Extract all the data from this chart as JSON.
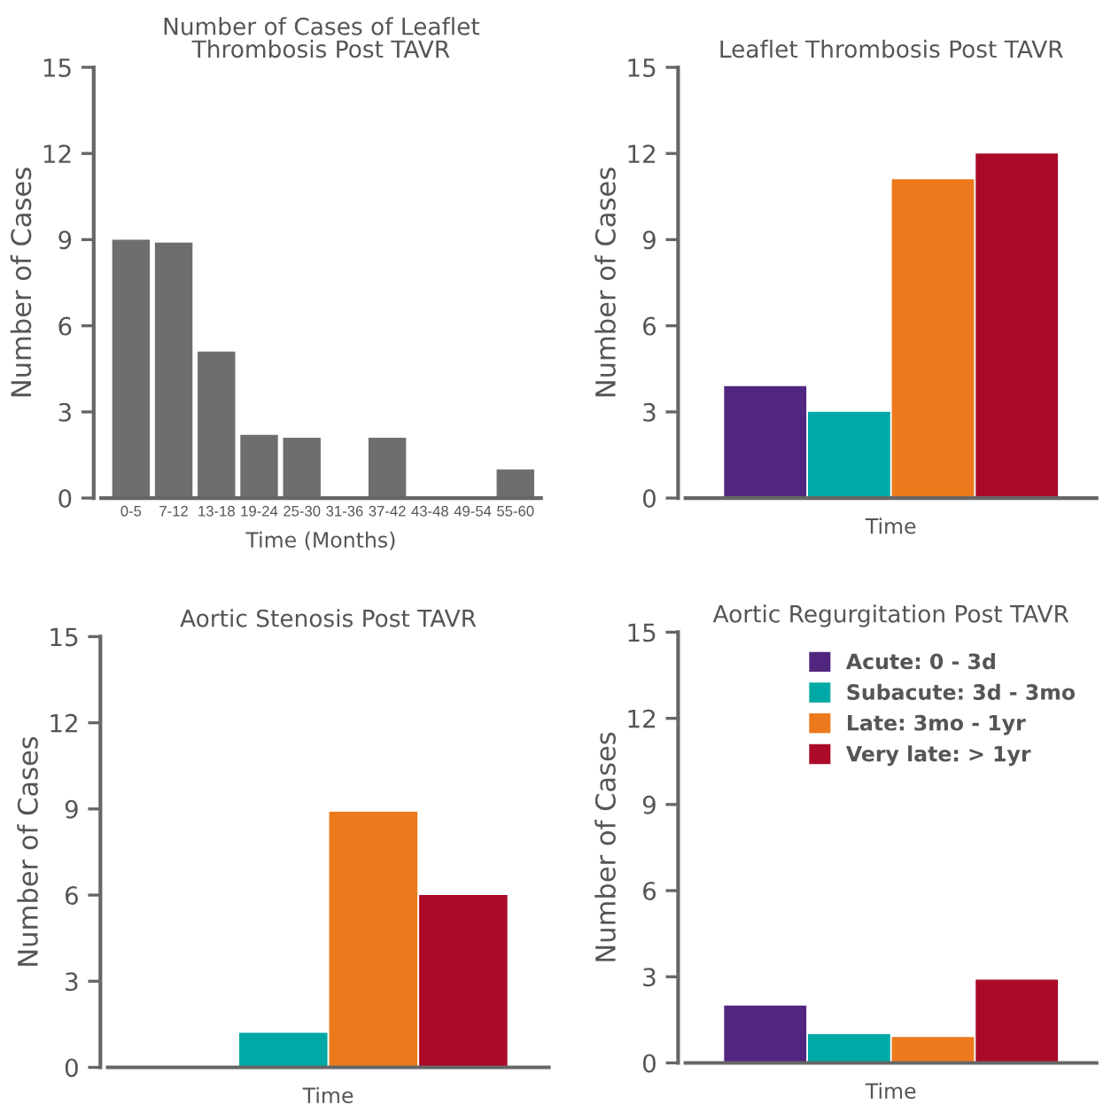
{
  "chart_data": [
    {
      "type": "bar",
      "title": "Number of Cases of Leaflet\nThrombosis Post TAVR",
      "xlabel": "Time (Months)",
      "ylabel": "Number of Cases",
      "categories": [
        "0-5",
        "7-12",
        "13-18",
        "19-24",
        "25-30",
        "31-36",
        "37-42",
        "43-48",
        "49-54",
        "55-60"
      ],
      "values": [
        9,
        8.9,
        5.1,
        2.2,
        2.1,
        0,
        2.1,
        0,
        0,
        1
      ],
      "color": "#6d6e70",
      "ylim": [
        0,
        15
      ],
      "yticks": [
        0,
        3,
        6,
        9,
        12,
        15
      ],
      "grid": false,
      "legend": false
    },
    {
      "type": "bar",
      "title": "Leaflet Thrombosis Post TAVR",
      "xlabel": "Time",
      "ylabel": "Number of Cases",
      "categories": [
        null
      ],
      "series": [
        {
          "color": "#51267f",
          "values": [
            3.9
          ]
        },
        {
          "color": "#00a9a5",
          "values": [
            3
          ]
        },
        {
          "color": "#ec7a1c",
          "values": [
            11.1
          ]
        },
        {
          "color": "#ab0a28",
          "values": [
            12
          ]
        }
      ],
      "ylim": [
        0,
        15
      ],
      "yticks": [
        0,
        3,
        6,
        9,
        12,
        15
      ],
      "grid": false,
      "legend": false
    },
    {
      "type": "bar",
      "title": "Aortic Stenosis Post TAVR",
      "xlabel": "Time",
      "ylabel": "Number of Cases",
      "categories": [
        null
      ],
      "series": [
        {
          "color": "#51267f",
          "values": [
            0
          ]
        },
        {
          "color": "#00a9a5",
          "values": [
            1.2
          ]
        },
        {
          "color": "#ec7a1c",
          "values": [
            8.9
          ]
        },
        {
          "color": "#ab0a28",
          "values": [
            6
          ]
        }
      ],
      "ylim": [
        0,
        15
      ],
      "yticks": [
        0,
        3,
        6,
        9,
        12,
        15
      ],
      "grid": false,
      "legend": false
    },
    {
      "type": "bar",
      "title": "Aortic Regurgitation Post TAVR",
      "xlabel": "Time",
      "ylabel": "Number of Cases",
      "categories": [
        null
      ],
      "series": [
        {
          "name": "Acute: 0 - 3d",
          "color": "#51267f",
          "values": [
            2
          ]
        },
        {
          "name": "Subacute: 3d - 3mo",
          "color": "#00a9a5",
          "values": [
            1
          ]
        },
        {
          "name": "Late: 3mo - 1yr",
          "color": "#ec7a1c",
          "values": [
            0.9
          ]
        },
        {
          "name": "Very late: > 1yr",
          "color": "#ab0a28",
          "values": [
            2.9
          ]
        }
      ],
      "ylim": [
        0,
        15
      ],
      "yticks": [
        0,
        3,
        6,
        9,
        12,
        15
      ],
      "grid": false,
      "legend": "top right"
    }
  ]
}
